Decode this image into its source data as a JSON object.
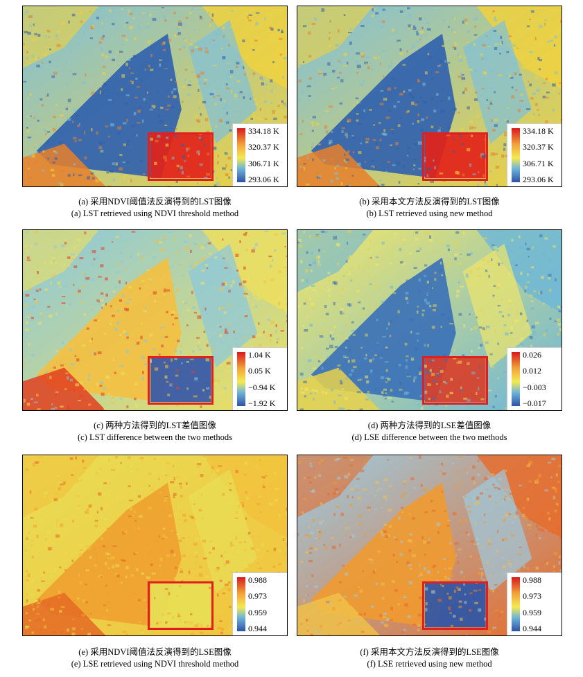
{
  "panels": [
    {
      "id": "a",
      "legend": [
        "334.18 K",
        "320.37 K",
        "306.71 K",
        "293.06 K"
      ],
      "palette": "lst",
      "caption_cn": "(a) 采用NDVI阈值法反演得到的LST图像",
      "caption_en": "(a) LST retrieved using NDVI threshold method"
    },
    {
      "id": "b",
      "legend": [
        "334.18 K",
        "320.37 K",
        "306.71 K",
        "293.06 K"
      ],
      "palette": "lst",
      "caption_cn": "(b) 采用本文方法反演得到的LST图像",
      "caption_en": "(b) LST retrieved using new method"
    },
    {
      "id": "c",
      "legend": [
        "1.04 K",
        "0.05 K",
        "−0.94 K",
        "−1.92 K"
      ],
      "palette": "diff",
      "caption_cn": "(c) 两种方法得到的LST差值图像",
      "caption_en": "(c) LST difference between the two methods"
    },
    {
      "id": "d",
      "legend": [
        "0.026",
        "0.012",
        "−0.003",
        "−0.017"
      ],
      "palette": "diff2",
      "caption_cn": "(d) 两种方法得到的LSE差值图像",
      "caption_en": "(d) LSE difference between the two methods"
    },
    {
      "id": "e",
      "legend": [
        "0.988",
        "0.973",
        "0.959",
        "0.944"
      ],
      "palette": "lse",
      "caption_cn": "(e) 采用NDVI阈值法反演得到的LSE图像",
      "caption_en": "(e) LSE retrieved using NDVI threshold method"
    },
    {
      "id": "f",
      "legend": [
        "0.988",
        "0.973",
        "0.959",
        "0.944"
      ],
      "palette": "lse2",
      "caption_cn": "(f) 采用本文方法反演得到的LSE图像",
      "caption_en": "(f) LSE retrieved using new method"
    }
  ],
  "colors": {
    "roi": "#e02020",
    "high": "#d7191c",
    "mid_high": "#f0a020",
    "mid": "#f4e94a",
    "mid_low": "#6fb3d9",
    "low": "#2c53a6"
  }
}
